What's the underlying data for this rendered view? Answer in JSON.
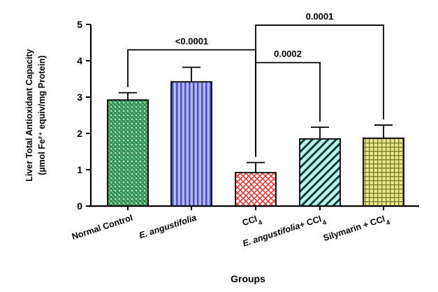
{
  "chart_data": {
    "type": "bar",
    "categories": [
      "Normal Control",
      "E. angustifolia",
      "CCl4",
      "E. angustifolia+ CCl4",
      "Silymarin + CCl4"
    ],
    "values": [
      2.92,
      3.42,
      0.92,
      1.85,
      1.87
    ],
    "errors": [
      0.2,
      0.4,
      0.28,
      0.32,
      0.36
    ],
    "ylim": [
      0,
      5
    ],
    "yticks": [
      0,
      1,
      2,
      3,
      4,
      5
    ],
    "xlabel": "Groups",
    "ylabel_line1": "Liver Total Antioxidant Capacity",
    "ylabel_line2": "(µmol Fe²⁺ equiv/mg Protein)",
    "grid": false,
    "colors": [
      "#2f8f4e",
      "#7b7fe0",
      "#e03a3a",
      "#5fc8c0",
      "#c8c85a"
    ],
    "comparisons": [
      {
        "from": 0,
        "to": 2,
        "label": "<0.0001",
        "level": 4.3
      },
      {
        "from": 2,
        "to": 3,
        "label": "0.0002",
        "level": 3.95
      },
      {
        "from": 2,
        "to": 4,
        "label": "0.0001",
        "level": 4.98
      }
    ]
  }
}
